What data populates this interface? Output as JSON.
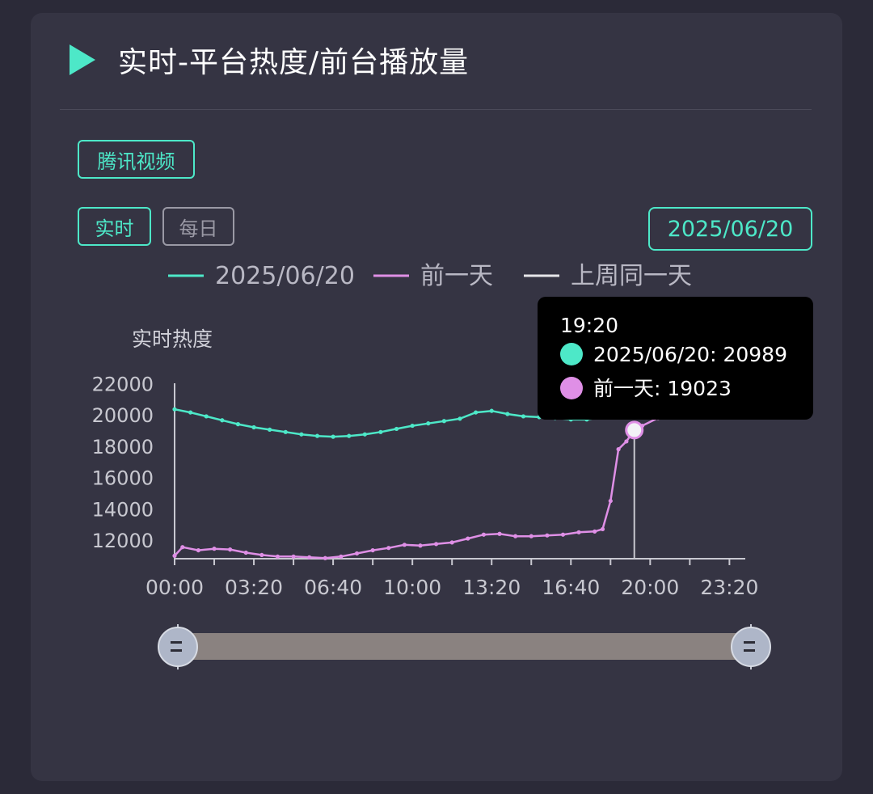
{
  "header": {
    "title": "实时-平台热度/前台播放量",
    "icon": "play-icon",
    "accent": "#4de8c8"
  },
  "platform_tab": {
    "label": "腾讯视频"
  },
  "mode_tabs": [
    {
      "label": "实时",
      "active": true
    },
    {
      "label": "每日",
      "active": false
    }
  ],
  "date_picker": {
    "label": "2025/06/20"
  },
  "chart_data": {
    "type": "line",
    "ylabel": "实时热度",
    "xlabel": "",
    "ylim": [
      11000,
      22000
    ],
    "yticks": [
      12000,
      14000,
      16000,
      18000,
      20000,
      22000
    ],
    "xticks": [
      "00:00",
      "03:20",
      "06:40",
      "10:00",
      "13:20",
      "16:40",
      "20:00",
      "23:20"
    ],
    "legend_position": "top",
    "series": [
      {
        "name": "2025/06/20",
        "color": "#4de8c8",
        "points": [
          [
            "00:00",
            20350
          ],
          [
            "00:40",
            20150
          ],
          [
            "01:20",
            19900
          ],
          [
            "02:00",
            19650
          ],
          [
            "02:40",
            19400
          ],
          [
            "03:20",
            19200
          ],
          [
            "04:00",
            19050
          ],
          [
            "04:40",
            18900
          ],
          [
            "05:20",
            18750
          ],
          [
            "06:00",
            18650
          ],
          [
            "06:40",
            18600
          ],
          [
            "07:20",
            18650
          ],
          [
            "08:00",
            18750
          ],
          [
            "08:40",
            18900
          ],
          [
            "09:20",
            19100
          ],
          [
            "10:00",
            19300
          ],
          [
            "10:40",
            19450
          ],
          [
            "11:20",
            19600
          ],
          [
            "12:00",
            19750
          ],
          [
            "12:40",
            20150
          ],
          [
            "13:20",
            20250
          ],
          [
            "14:00",
            20050
          ],
          [
            "14:40",
            19900
          ],
          [
            "15:20",
            19850
          ],
          [
            "16:00",
            19800
          ],
          [
            "16:40",
            19700
          ],
          [
            "17:20",
            19700
          ],
          [
            "18:00",
            19850
          ],
          [
            "18:40",
            20100
          ],
          [
            "19:20",
            20989
          ]
        ]
      },
      {
        "name": "前一天",
        "color": "#df8fe6",
        "points": [
          [
            "00:00",
            11000
          ],
          [
            "00:20",
            11550
          ],
          [
            "01:00",
            11350
          ],
          [
            "01:40",
            11450
          ],
          [
            "02:20",
            11400
          ],
          [
            "03:00",
            11200
          ],
          [
            "03:40",
            11050
          ],
          [
            "04:20",
            10950
          ],
          [
            "05:00",
            10950
          ],
          [
            "05:40",
            10900
          ],
          [
            "06:20",
            10850
          ],
          [
            "07:00",
            10950
          ],
          [
            "07:40",
            11150
          ],
          [
            "08:20",
            11350
          ],
          [
            "09:00",
            11500
          ],
          [
            "09:40",
            11700
          ],
          [
            "10:20",
            11650
          ],
          [
            "11:00",
            11750
          ],
          [
            "11:40",
            11850
          ],
          [
            "12:20",
            12100
          ],
          [
            "13:00",
            12350
          ],
          [
            "13:40",
            12400
          ],
          [
            "14:20",
            12250
          ],
          [
            "15:00",
            12250
          ],
          [
            "15:40",
            12300
          ],
          [
            "16:20",
            12350
          ],
          [
            "17:00",
            12500
          ],
          [
            "17:40",
            12550
          ],
          [
            "18:00",
            12700
          ],
          [
            "18:20",
            14500
          ],
          [
            "18:40",
            17800
          ],
          [
            "19:00",
            18300
          ],
          [
            "19:20",
            19023
          ],
          [
            "19:40",
            19300
          ],
          [
            "20:20",
            19800
          ]
        ]
      },
      {
        "name": "上周同一天",
        "color": "#e6e6ea",
        "points": []
      }
    ],
    "tooltip": {
      "time": "19:20",
      "rows": [
        {
          "label": "2025/06/20: 20989",
          "color": "#4de8c8"
        },
        {
          "label": "前一天: 19023",
          "color": "#df8fe6"
        }
      ]
    }
  }
}
